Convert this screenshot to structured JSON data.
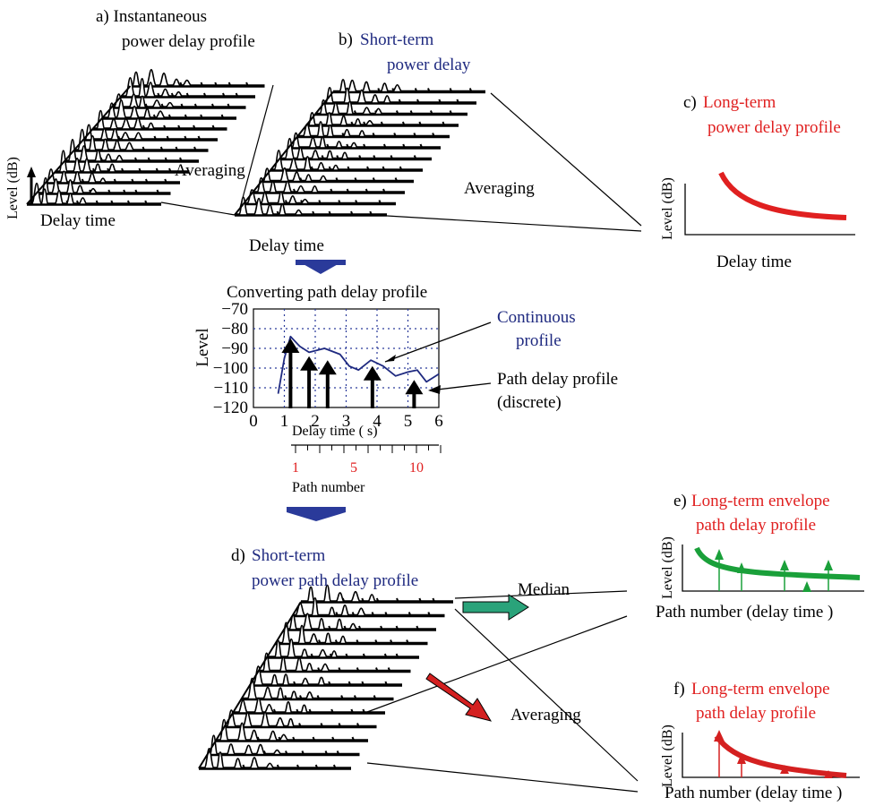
{
  "a": {
    "title_lines": [
      "a) Instantaneous",
      "power delay profile"
    ],
    "y_label": "Level (dB)",
    "x_label": "Delay time",
    "arrow_label": "Averaging"
  },
  "b": {
    "prefix": "b)",
    "title_lines": [
      "Short-term",
      "power delay"
    ],
    "x_label": "Delay time",
    "arrow_label": "Averaging"
  },
  "c": {
    "prefix": "c)",
    "title_lines": [
      "Long-term",
      "power delay profile"
    ],
    "y_label": "Level (dB)",
    "x_label": "Delay time"
  },
  "converting": {
    "title": "Converting path delay profile",
    "y_label": "Level",
    "yticks": [
      "−70",
      "−80",
      "−90",
      "−100",
      "−110",
      "−120"
    ],
    "xticks": [
      "0",
      "1",
      "2",
      "3",
      "4",
      "5",
      "6"
    ],
    "x_label": "Delay time (  s)",
    "path_ticks": [
      "1",
      "5",
      "10"
    ],
    "path_label": "Path number",
    "continuous_label": [
      "Continuous",
      "profile"
    ],
    "discrete_label": [
      "Path delay profile",
      "(discrete)"
    ]
  },
  "d": {
    "prefix": "d)",
    "title_lines": [
      "Short-term",
      "power path delay profile"
    ],
    "median_label": "Median",
    "averaging_label": "Averaging"
  },
  "e": {
    "prefix": "e)",
    "title_lines": [
      "Long-term envelope",
      "path delay profile"
    ],
    "y_label": "Level (dB)",
    "x_label": "Path number (delay time )"
  },
  "f": {
    "prefix": "f)",
    "title_lines": [
      "Long-term envelope",
      "path delay profile"
    ],
    "y_label": "Level (dB)",
    "x_label": "Path number (delay time )"
  }
}
